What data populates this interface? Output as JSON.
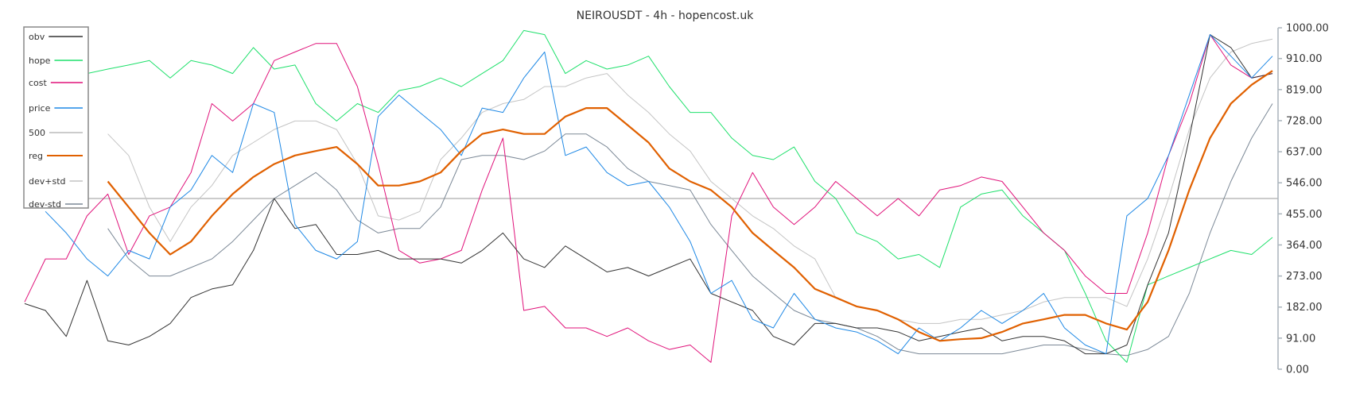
{
  "chart_data": {
    "type": "line",
    "title": "NEIROUSDT - 4h - hopencost.uk",
    "ylim": [
      0,
      1000
    ],
    "yticks": [
      "1000.00",
      "910.00",
      "819.00",
      "728.00",
      "637.00",
      "546.00",
      "455.00",
      "364.00",
      "273.00",
      "182.00",
      "91.00",
      "0.00"
    ],
    "ytick_values": [
      1000,
      910,
      819,
      728,
      637,
      546,
      455,
      364,
      273,
      182,
      91,
      0
    ],
    "legend_position": "top-left",
    "grid": false,
    "series": [
      {
        "name": "obv",
        "color": "#333333",
        "width": 1,
        "start": 0,
        "values": [
          192,
          172,
          96,
          260,
          83,
          71,
          96,
          134,
          210,
          235,
          247,
          348,
          500,
          412,
          424,
          336,
          336,
          348,
          323,
          323,
          323,
          311,
          348,
          399,
          323,
          298,
          361,
          323,
          285,
          298,
          273,
          298,
          323,
          222,
          197,
          172,
          96,
          71,
          134,
          134,
          121,
          121,
          109,
          83,
          96,
          109,
          121,
          83,
          96,
          96,
          83,
          45,
          45,
          71,
          247,
          399,
          677,
          980,
          942,
          853,
          866
        ]
      },
      {
        "name": "hope",
        "color": "#1ee06b",
        "width": 1,
        "start": 0,
        "values": [
          917,
          891,
          853,
          866,
          879,
          891,
          904,
          853,
          904,
          891,
          866,
          942,
          879,
          891,
          778,
          727,
          778,
          752,
          816,
          828,
          853,
          828,
          866,
          904,
          992,
          980,
          866,
          904,
          879,
          891,
          917,
          828,
          752,
          752,
          677,
          626,
          614,
          651,
          550,
          500,
          399,
          374,
          323,
          336,
          298,
          475,
          513,
          525,
          449,
          399,
          348,
          222,
          83,
          20,
          247,
          273,
          298,
          323,
          348,
          336,
          386
        ]
      },
      {
        "name": "cost",
        "color": "#e0127a",
        "width": 1,
        "start": 0,
        "values": [
          197,
          323,
          323,
          449,
          513,
          336,
          449,
          475,
          576,
          778,
          727,
          778,
          904,
          929,
          954,
          954,
          828,
          601,
          348,
          311,
          323,
          348,
          525,
          677,
          172,
          184,
          121,
          121,
          96,
          121,
          83,
          58,
          71,
          20,
          449,
          576,
          475,
          424,
          475,
          550,
          500,
          449,
          500,
          449,
          525,
          538,
          563,
          550,
          475,
          399,
          348,
          273,
          222,
          222,
          399,
          626,
          778,
          980,
          891,
          853,
          866
        ]
      },
      {
        "name": "price",
        "color": "#1e88e5",
        "width": 1,
        "start": 1,
        "values": [
          462,
          399,
          323,
          273,
          348,
          323,
          475,
          525,
          626,
          576,
          778,
          752,
          424,
          348,
          323,
          374,
          740,
          803,
          752,
          702,
          626,
          765,
          752,
          853,
          929,
          626,
          651,
          576,
          538,
          550,
          475,
          374,
          222,
          260,
          146,
          121,
          222,
          146,
          121,
          109,
          83,
          45,
          121,
          83,
          121,
          172,
          134,
          172,
          222,
          121,
          71,
          45,
          449,
          500,
          626,
          803,
          980,
          917,
          853,
          917
        ]
      },
      {
        "name": "500",
        "color": "#bbbbbb",
        "width": 1.5,
        "constant": 500
      },
      {
        "name": "reg",
        "color": "#e06000",
        "width": 2.2,
        "start": 4,
        "values": [
          550,
          475,
          399,
          336,
          374,
          449,
          513,
          563,
          601,
          626,
          639,
          651,
          601,
          538,
          538,
          550,
          576,
          639,
          689,
          702,
          689,
          689,
          740,
          765,
          765,
          715,
          664,
          588,
          550,
          525,
          475,
          399,
          348,
          298,
          235,
          210,
          184,
          172,
          146,
          109,
          83,
          88,
          91,
          109,
          134,
          146,
          159,
          159,
          134,
          116,
          197,
          348,
          525,
          677,
          778,
          833,
          874
        ]
      },
      {
        "name": "dev+std",
        "color": "#c4c4c4",
        "width": 1,
        "start": 4,
        "values": [
          689,
          626,
          475,
          374,
          475,
          538,
          626,
          664,
          702,
          727,
          727,
          702,
          601,
          449,
          437,
          462,
          614,
          677,
          752,
          778,
          790,
          828,
          828,
          853,
          866,
          803,
          752,
          689,
          639,
          550,
          500,
          449,
          412,
          361,
          323,
          210,
          184,
          172,
          146,
          134,
          134,
          146,
          146,
          159,
          172,
          197,
          210,
          210,
          210,
          184,
          323,
          500,
          702,
          853,
          929,
          954,
          967
        ]
      },
      {
        "name": "dev-std",
        "color": "#7b8896",
        "width": 1,
        "start": 4,
        "values": [
          412,
          323,
          273,
          273,
          298,
          323,
          374,
          437,
          500,
          538,
          576,
          525,
          437,
          399,
          412,
          412,
          475,
          614,
          626,
          626,
          614,
          639,
          689,
          689,
          651,
          588,
          550,
          538,
          525,
          424,
          348,
          273,
          222,
          172,
          146,
          134,
          121,
          96,
          58,
          45,
          45,
          45,
          45,
          45,
          58,
          71,
          71,
          58,
          45,
          40,
          58,
          96,
          222,
          399,
          550,
          677,
          778
        ]
      }
    ]
  }
}
